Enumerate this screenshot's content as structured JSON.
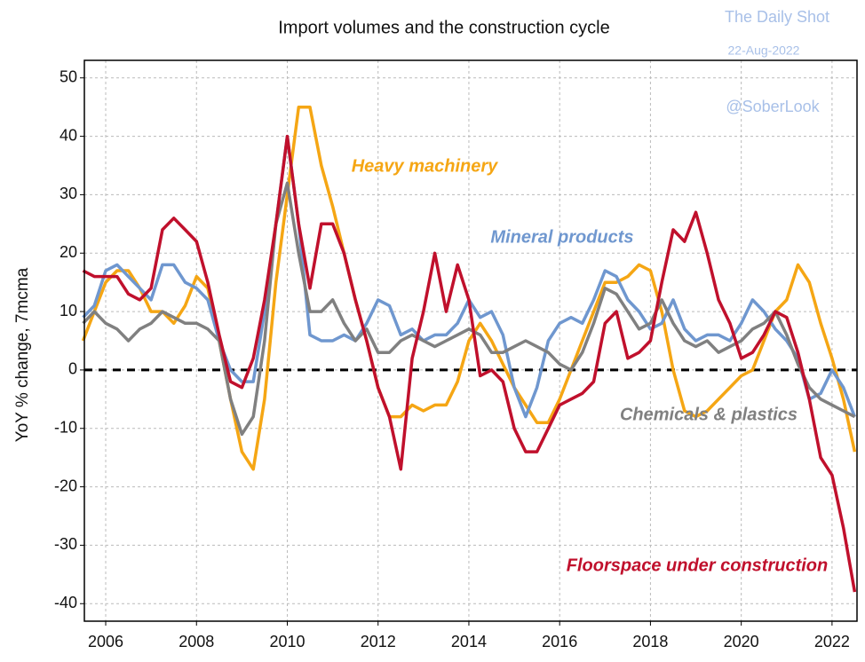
{
  "chart_data": {
    "type": "line",
    "title": "Import volumes and the construction cycle",
    "watermark": [
      "The Daily Shot",
      "22-Aug-2022",
      "@SoberLook"
    ],
    "y_label": "YoY % change, 7mcma",
    "x": [
      2005.5,
      2005.75,
      2006,
      2006.25,
      2006.5,
      2006.75,
      2007,
      2007.25,
      2007.5,
      2007.75,
      2008,
      2008.25,
      2008.5,
      2008.75,
      2009,
      2009.25,
      2009.5,
      2009.75,
      2010,
      2010.25,
      2010.5,
      2010.75,
      2011,
      2011.25,
      2011.5,
      2011.75,
      2012,
      2012.25,
      2012.5,
      2012.75,
      2013,
      2013.25,
      2013.5,
      2013.75,
      2014,
      2014.25,
      2014.5,
      2014.75,
      2015,
      2015.25,
      2015.5,
      2015.75,
      2016,
      2016.25,
      2016.5,
      2016.75,
      2017,
      2017.25,
      2017.5,
      2017.75,
      2018,
      2018.25,
      2018.5,
      2018.75,
      2019,
      2019.25,
      2019.5,
      2019.75,
      2020,
      2020.25,
      2020.5,
      2020.75,
      2021,
      2021.25,
      2021.5,
      2021.75,
      2022,
      2022.25,
      2022.5
    ],
    "series": [
      {
        "name": "Heavy machinery",
        "color": "#f5a614",
        "values": [
          5,
          10,
          15,
          17,
          17,
          14,
          10,
          10,
          8,
          11,
          16,
          14,
          5,
          -5,
          -14,
          -17,
          -5,
          15,
          30,
          45,
          45,
          35,
          28,
          20,
          12,
          5,
          -3,
          -8,
          -8,
          -6,
          -7,
          -6,
          -6,
          -2,
          5,
          8,
          5,
          1,
          -3,
          -6,
          -9,
          -9,
          -5,
          0,
          5,
          10,
          15,
          15,
          16,
          18,
          17,
          10,
          0,
          -7,
          -8,
          -7,
          -5,
          -3,
          -1,
          0,
          5,
          10,
          12,
          18,
          15,
          8,
          2,
          -5,
          -14
        ]
      },
      {
        "name": "Mineral products",
        "color": "#6f97cf",
        "values": [
          9,
          11,
          17,
          18,
          16,
          14,
          12,
          18,
          18,
          15,
          14,
          12,
          5,
          0,
          -2,
          -2,
          10,
          25,
          40,
          25,
          6,
          5,
          5,
          6,
          5,
          8,
          12,
          11,
          6,
          7,
          5,
          6,
          6,
          8,
          12,
          9,
          10,
          6,
          -3,
          -8,
          -3,
          5,
          8,
          9,
          8,
          12,
          17,
          16,
          12,
          10,
          7,
          8,
          12,
          7,
          5,
          6,
          6,
          5,
          8,
          12,
          10,
          7,
          5,
          2,
          -5,
          -4,
          0,
          -3,
          -8
        ]
      },
      {
        "name": "Chemicals & plastics",
        "color": "#808080",
        "values": [
          8,
          10,
          8,
          7,
          5,
          7,
          8,
          10,
          9,
          8,
          8,
          7,
          5,
          -5,
          -11,
          -8,
          5,
          25,
          32,
          20,
          10,
          10,
          12,
          8,
          5,
          7,
          3,
          3,
          5,
          6,
          5,
          4,
          5,
          6,
          7,
          6,
          3,
          3,
          4,
          5,
          4,
          3,
          1,
          0,
          3,
          8,
          14,
          13,
          10,
          7,
          8,
          12,
          8,
          5,
          4,
          5,
          3,
          4,
          5,
          7,
          8,
          10,
          6,
          1,
          -3,
          -5,
          -6,
          -7,
          -8
        ]
      },
      {
        "name": "Floorspace under construction",
        "color": "#c0102c",
        "values": [
          17,
          16,
          16,
          16,
          13,
          12,
          14,
          24,
          26,
          24,
          22,
          15,
          6,
          -2,
          -3,
          2,
          12,
          25,
          40,
          25,
          14,
          25,
          25,
          20,
          12,
          5,
          -3,
          -8,
          -17,
          2,
          10,
          20,
          10,
          18,
          12,
          -1,
          0,
          -2,
          -10,
          -14,
          -14,
          -10,
          -6,
          -5,
          -4,
          -2,
          8,
          10,
          2,
          3,
          5,
          15,
          24,
          22,
          27,
          20,
          12,
          8,
          2,
          3,
          6,
          10,
          9,
          3,
          -5,
          -15,
          -18,
          -27,
          -38
        ]
      }
    ],
    "xlim": [
      2005.53,
      2022.55
    ],
    "xticks": [
      2006,
      2008,
      2010,
      2012,
      2014,
      2016,
      2018,
      2020,
      2022
    ],
    "ylim": [
      -43,
      53
    ],
    "yticks": [
      -40,
      -30,
      -20,
      -10,
      0,
      10,
      20,
      30,
      40,
      50
    ],
    "grid": true
  }
}
